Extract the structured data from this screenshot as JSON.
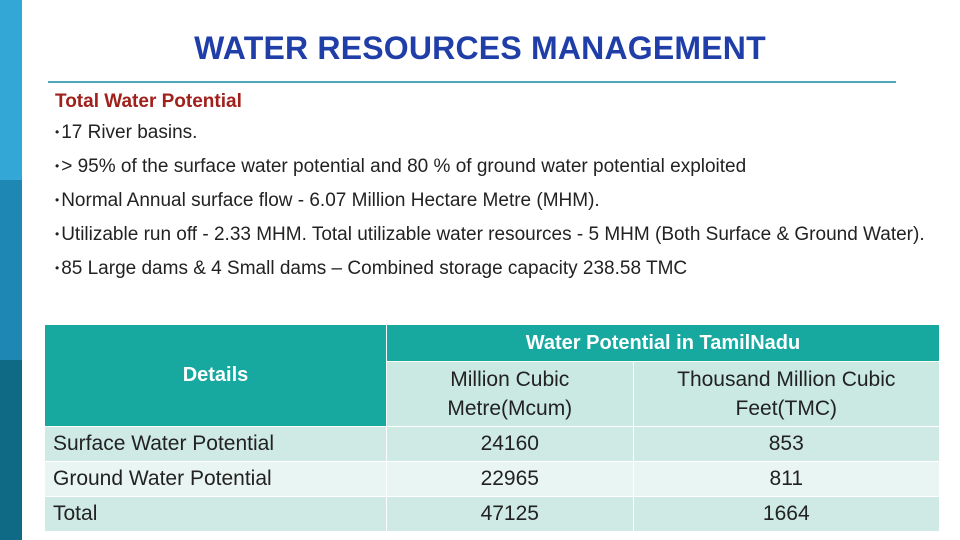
{
  "slide": {
    "title": "WATER RESOURCES MANAGEMENT",
    "subtitle": "Total Water Potential",
    "bullet_marker": "•",
    "bullets": [
      "17 River basins.",
      "> 95% of the surface water potential and 80 % of ground water potential exploited",
      "Normal Annual surface flow - 6.07 Million Hectare Metre (MHM).",
      "Utilizable run off - 2.33 MHM. Total utilizable water resources - 5 MHM (Both Surface & Ground Water).",
      "85 Large dams & 4 Small dams – Combined storage capacity 238.58 TMC"
    ]
  },
  "table": {
    "details_header": "Details",
    "group_header": "Water Potential in TamilNadu",
    "unit_headers": [
      "Million Cubic Metre(Mcum)",
      "Thousand Million Cubic Feet(TMC)"
    ],
    "rows": [
      {
        "label": "Surface Water Potential",
        "mcum": "24160",
        "tmc": "853"
      },
      {
        "label": "Ground Water Potential",
        "mcum": "22965",
        "tmc": "811"
      },
      {
        "label": "Total",
        "mcum": "47125",
        "tmc": "1664"
      }
    ]
  },
  "colors": {
    "title": "#1f3ea8",
    "subtitle": "#a0201c",
    "table_header": "#17a8a0",
    "accent_bars": [
      "#33a7d6",
      "#1f87b3",
      "#0f6a86"
    ]
  }
}
